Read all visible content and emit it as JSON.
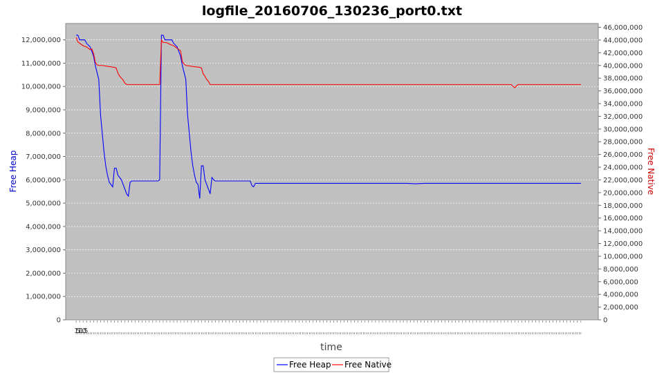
{
  "chart_data": {
    "type": "line",
    "title": "logfile_20160706_130236_port0.txt",
    "xlabel": "time",
    "ylabel_left": "Free Heap",
    "ylabel_right": "Free Native",
    "x_tick_labels": [
      "1",
      "5",
      "10",
      "15"
    ],
    "y_left": {
      "range": [
        0,
        12700000
      ],
      "ticks": [
        0,
        1000000,
        2000000,
        3000000,
        4000000,
        5000000,
        6000000,
        7000000,
        8000000,
        9000000,
        10000000,
        11000000,
        12000000
      ]
    },
    "y_right": {
      "range": [
        0,
        46600000
      ],
      "ticks": [
        0,
        2000000,
        4000000,
        6000000,
        8000000,
        10000000,
        12000000,
        14000000,
        16000000,
        18000000,
        20000000,
        22000000,
        24000000,
        26000000,
        28000000,
        30000000,
        32000000,
        34000000,
        36000000,
        38000000,
        40000000,
        42000000,
        44000000,
        46000000
      ]
    },
    "x_range": [
      -6,
      300
    ],
    "grid": true,
    "legend": "bottom-center",
    "series": [
      {
        "name": "Free Heap",
        "axis": "left",
        "color": "#0000ff",
        "points": [
          [
            0,
            12200000
          ],
          [
            1,
            12200000
          ],
          [
            2,
            12000000
          ],
          [
            5,
            12000000
          ],
          [
            6,
            11850000
          ],
          [
            8,
            11700000
          ],
          [
            9,
            11500000
          ],
          [
            10,
            11300000
          ],
          [
            11,
            10900000
          ],
          [
            12,
            10600000
          ],
          [
            13,
            10300000
          ],
          [
            14,
            8800000
          ],
          [
            15,
            8000000
          ],
          [
            16,
            7200000
          ],
          [
            17,
            6600000
          ],
          [
            18,
            6200000
          ],
          [
            19,
            5900000
          ],
          [
            21,
            5700000
          ],
          [
            22,
            6500000
          ],
          [
            23,
            6500000
          ],
          [
            24,
            6200000
          ],
          [
            26,
            6000000
          ],
          [
            27,
            5800000
          ],
          [
            28,
            5600000
          ],
          [
            29,
            5400000
          ],
          [
            30,
            5300000
          ],
          [
            31,
            5900000
          ],
          [
            32,
            5950000
          ],
          [
            44,
            5950000
          ],
          [
            47,
            5950000
          ],
          [
            48,
            6000000
          ],
          [
            49,
            12200000
          ],
          [
            50,
            12200000
          ],
          [
            51,
            12000000
          ],
          [
            55,
            12000000
          ],
          [
            56,
            11850000
          ],
          [
            58,
            11700000
          ],
          [
            59,
            11500000
          ],
          [
            60,
            11300000
          ],
          [
            61,
            10900000
          ],
          [
            62,
            10600000
          ],
          [
            63,
            10300000
          ],
          [
            64,
            8800000
          ],
          [
            65,
            8000000
          ],
          [
            66,
            7200000
          ],
          [
            67,
            6600000
          ],
          [
            68,
            6200000
          ],
          [
            69,
            5900000
          ],
          [
            70,
            5800000
          ],
          [
            71,
            5200000
          ],
          [
            72,
            6600000
          ],
          [
            73,
            6600000
          ],
          [
            74,
            6000000
          ],
          [
            75,
            5800000
          ],
          [
            76,
            5600000
          ],
          [
            77,
            5400000
          ],
          [
            78,
            6100000
          ],
          [
            79,
            6000000
          ],
          [
            80,
            5950000
          ],
          [
            95,
            5950000
          ],
          [
            100,
            5950000
          ],
          [
            101,
            5750000
          ],
          [
            102,
            5700000
          ],
          [
            103,
            5850000
          ],
          [
            190,
            5850000
          ],
          [
            195,
            5830000
          ],
          [
            200,
            5850000
          ],
          [
            290,
            5850000
          ]
        ]
      },
      {
        "name": "Free Native",
        "axis": "right",
        "color": "#ff0000",
        "points": [
          [
            0,
            44400000
          ],
          [
            1,
            43700000
          ],
          [
            2,
            43500000
          ],
          [
            4,
            43100000
          ],
          [
            6,
            42900000
          ],
          [
            8,
            42500000
          ],
          [
            9,
            42600000
          ],
          [
            10,
            41900000
          ],
          [
            11,
            40500000
          ],
          [
            12,
            40100000
          ],
          [
            13,
            40000000
          ],
          [
            15,
            40000000
          ],
          [
            22,
            39700000
          ],
          [
            23,
            39600000
          ],
          [
            24,
            38800000
          ],
          [
            25,
            38300000
          ],
          [
            26,
            38000000
          ],
          [
            27,
            37700000
          ],
          [
            28,
            37200000
          ],
          [
            29,
            37000000
          ],
          [
            30,
            37000000
          ],
          [
            48,
            37000000
          ],
          [
            49,
            44000000
          ],
          [
            50,
            43600000
          ],
          [
            52,
            43600000
          ],
          [
            54,
            43300000
          ],
          [
            56,
            43100000
          ],
          [
            58,
            42700000
          ],
          [
            60,
            42300000
          ],
          [
            61,
            40600000
          ],
          [
            62,
            40200000
          ],
          [
            63,
            40000000
          ],
          [
            71,
            39700000
          ],
          [
            72,
            39600000
          ],
          [
            73,
            38700000
          ],
          [
            74,
            38300000
          ],
          [
            75,
            37800000
          ],
          [
            76,
            37500000
          ],
          [
            77,
            37000000
          ],
          [
            100,
            37000000
          ],
          [
            250,
            37000000
          ],
          [
            251,
            36700000
          ],
          [
            252,
            36500000
          ],
          [
            253,
            36800000
          ],
          [
            254,
            37000000
          ],
          [
            290,
            37000000
          ]
        ]
      }
    ]
  }
}
